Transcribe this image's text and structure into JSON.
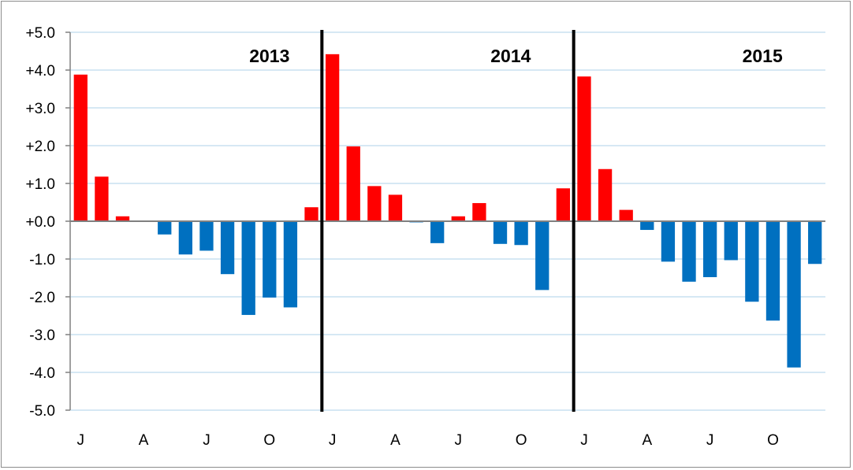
{
  "chart_data": {
    "type": "bar",
    "title": "",
    "xlabel": "",
    "ylabel": "",
    "ylim": [
      -5.0,
      5.0
    ],
    "yticks": [
      "+5.0",
      "+4.0",
      "+3.0",
      "+2.0",
      "+1.0",
      "+0.0",
      "-1.0",
      "-2.0",
      "-3.0",
      "-4.0",
      "-5.0"
    ],
    "grid": true,
    "legend": "none",
    "x_tick_labels": [
      {
        "index": 0,
        "label": "J"
      },
      {
        "index": 3,
        "label": "A"
      },
      {
        "index": 6,
        "label": "J"
      },
      {
        "index": 9,
        "label": "O"
      },
      {
        "index": 12,
        "label": "J"
      },
      {
        "index": 15,
        "label": "A"
      },
      {
        "index": 18,
        "label": "J"
      },
      {
        "index": 21,
        "label": "O"
      },
      {
        "index": 24,
        "label": "J"
      },
      {
        "index": 27,
        "label": "A"
      },
      {
        "index": 30,
        "label": "J"
      },
      {
        "index": 33,
        "label": "O"
      }
    ],
    "year_labels": [
      {
        "label": "2013",
        "center_index": 9
      },
      {
        "label": "2014",
        "center_index": 20.5
      },
      {
        "label": "2015",
        "center_index": 32.5
      }
    ],
    "year_dividers_after_index": [
      11,
      23
    ],
    "values": [
      3.88,
      1.18,
      0.13,
      0.0,
      -0.35,
      -0.88,
      -0.78,
      -1.4,
      -2.48,
      -2.02,
      -2.28,
      0.37,
      4.42,
      1.98,
      0.93,
      0.7,
      -0.03,
      -0.58,
      0.13,
      0.48,
      -0.6,
      -0.63,
      -1.82,
      0.87,
      3.83,
      1.38,
      0.3,
      -0.23,
      -1.07,
      -1.6,
      -1.48,
      -1.03,
      -2.13,
      -2.63,
      -3.87,
      -1.13
    ],
    "colors": {
      "positive": "#ff0000",
      "negative": "#0070c0",
      "grid": "#c8e1f0",
      "axis": "#808080",
      "divider": "#000000"
    }
  }
}
